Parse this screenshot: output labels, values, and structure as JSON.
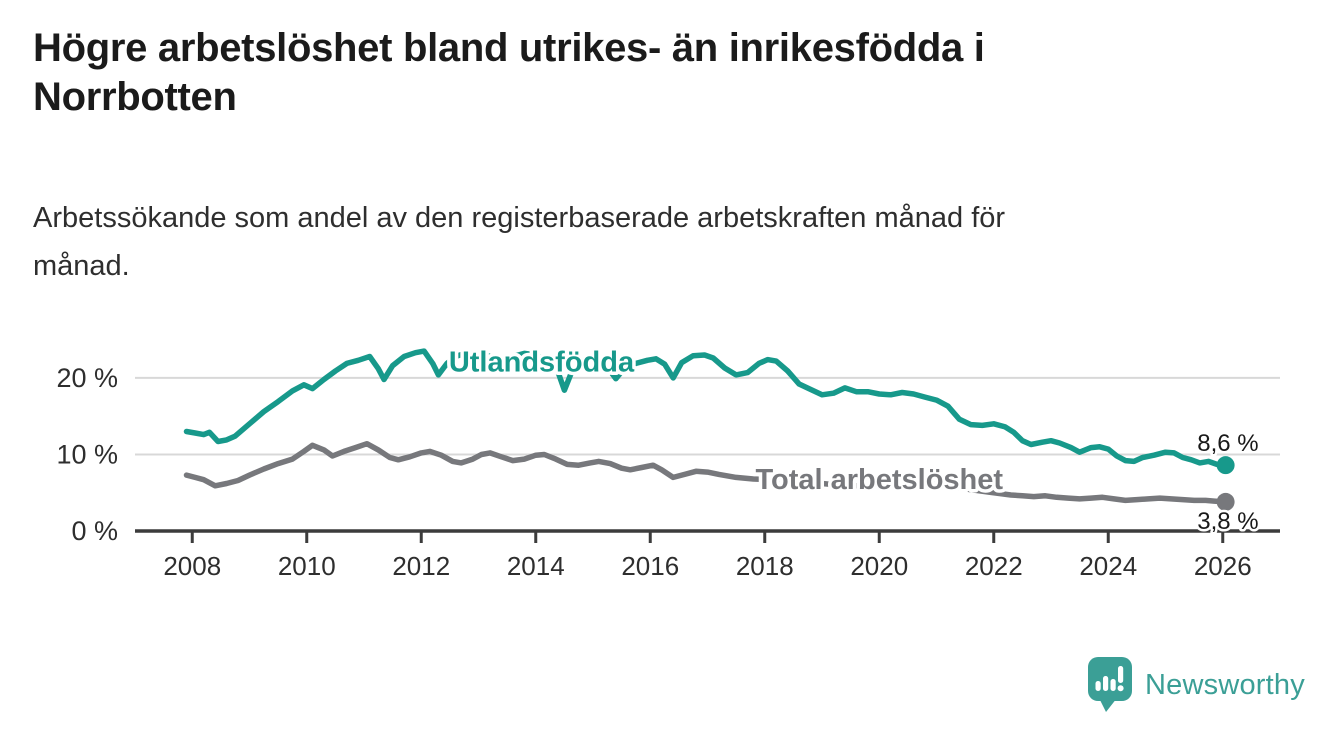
{
  "header": {
    "title_lines": [
      "Högre arbetslöshet bland utrikes- än inrikesfödda i",
      "Norrbotten"
    ],
    "subtitle_lines": [
      "Arbetssökande som andel av den registerbaserade arbetskraften månad för",
      "månad."
    ]
  },
  "footer": {
    "brand_name": "Newsworthy",
    "brand_color": "#3b9f96",
    "logo_icon": "bar-chart-speech-bubble-icon"
  },
  "chart_data": {
    "type": "line",
    "title": "Högre arbetslöshet bland utrikes- än inrikesfödda i Norrbotten",
    "subtitle": "Arbetssökande som andel av den registerbaserade arbetskraften månad för månad.",
    "unit": "%",
    "x_axis": {
      "range": [
        2007.0,
        2027.0
      ],
      "ticks": [
        2008,
        2010,
        2012,
        2014,
        2016,
        2018,
        2020,
        2022,
        2024,
        2026
      ]
    },
    "y_axis": {
      "range": [
        0,
        26
      ],
      "ticks": [
        0,
        10,
        20
      ],
      "tick_labels": [
        "0 %",
        "10 %",
        "20 %"
      ],
      "gridlines": [
        10,
        20
      ]
    },
    "grid": "horizontal",
    "legend": "inline-labels",
    "colors": {
      "axis": "#3c3c3c",
      "grid": "#d8d8d8",
      "tick_text": "#2e2e2e",
      "value_label_text": "#191919"
    },
    "series": [
      {
        "name": "Utlandsfödda",
        "color": "#17998b",
        "end_label": "8,6 %",
        "end_value": 8.6,
        "label_anchor": {
          "year": 2014.1,
          "value": 22.15
        },
        "points": [
          [
            2007.9,
            13.0
          ],
          [
            2008.05,
            12.8
          ],
          [
            2008.2,
            12.6
          ],
          [
            2008.3,
            12.9
          ],
          [
            2008.45,
            11.7
          ],
          [
            2008.6,
            11.9
          ],
          [
            2008.75,
            12.4
          ],
          [
            2009.0,
            14.0
          ],
          [
            2009.25,
            15.6
          ],
          [
            2009.5,
            16.9
          ],
          [
            2009.75,
            18.3
          ],
          [
            2009.95,
            19.1
          ],
          [
            2010.1,
            18.6
          ],
          [
            2010.3,
            19.8
          ],
          [
            2010.5,
            20.9
          ],
          [
            2010.7,
            21.9
          ],
          [
            2010.9,
            22.3
          ],
          [
            2011.1,
            22.8
          ],
          [
            2011.25,
            21.2
          ],
          [
            2011.35,
            19.8
          ],
          [
            2011.5,
            21.6
          ],
          [
            2011.7,
            22.8
          ],
          [
            2011.9,
            23.3
          ],
          [
            2012.05,
            23.5
          ],
          [
            2012.2,
            21.9
          ],
          [
            2012.3,
            20.4
          ],
          [
            2012.45,
            21.9
          ],
          [
            2012.6,
            22.8
          ],
          [
            2012.8,
            23.3
          ],
          [
            2013.0,
            23.3
          ],
          [
            2013.2,
            22.8
          ],
          [
            2013.4,
            22.4
          ],
          [
            2013.6,
            22.8
          ],
          [
            2013.8,
            23.2
          ],
          [
            2014.0,
            23.0
          ],
          [
            2014.2,
            22.4
          ],
          [
            2014.35,
            21.6
          ],
          [
            2014.5,
            18.4
          ],
          [
            2014.65,
            21.2
          ],
          [
            2014.8,
            22.0
          ],
          [
            2015.0,
            22.4
          ],
          [
            2015.2,
            21.9
          ],
          [
            2015.4,
            19.9
          ],
          [
            2015.55,
            21.3
          ],
          [
            2015.75,
            21.9
          ],
          [
            2015.95,
            22.3
          ],
          [
            2016.1,
            22.5
          ],
          [
            2016.25,
            21.8
          ],
          [
            2016.4,
            20.0
          ],
          [
            2016.55,
            22.0
          ],
          [
            2016.75,
            22.9
          ],
          [
            2016.95,
            23.0
          ],
          [
            2017.1,
            22.6
          ],
          [
            2017.3,
            21.3
          ],
          [
            2017.5,
            20.4
          ],
          [
            2017.7,
            20.7
          ],
          [
            2017.9,
            21.9
          ],
          [
            2018.05,
            22.4
          ],
          [
            2018.2,
            22.2
          ],
          [
            2018.4,
            20.9
          ],
          [
            2018.6,
            19.2
          ],
          [
            2018.8,
            18.5
          ],
          [
            2019.0,
            17.8
          ],
          [
            2019.2,
            18.0
          ],
          [
            2019.4,
            18.7
          ],
          [
            2019.6,
            18.2
          ],
          [
            2019.8,
            18.2
          ],
          [
            2020.0,
            17.9
          ],
          [
            2020.2,
            17.8
          ],
          [
            2020.4,
            18.1
          ],
          [
            2020.6,
            17.9
          ],
          [
            2020.8,
            17.5
          ],
          [
            2021.0,
            17.1
          ],
          [
            2021.2,
            16.3
          ],
          [
            2021.4,
            14.6
          ],
          [
            2021.6,
            13.9
          ],
          [
            2021.8,
            13.8
          ],
          [
            2022.0,
            14.0
          ],
          [
            2022.2,
            13.6
          ],
          [
            2022.35,
            12.9
          ],
          [
            2022.5,
            11.8
          ],
          [
            2022.65,
            11.3
          ],
          [
            2022.85,
            11.6
          ],
          [
            2023.0,
            11.8
          ],
          [
            2023.15,
            11.5
          ],
          [
            2023.35,
            10.9
          ],
          [
            2023.5,
            10.3
          ],
          [
            2023.7,
            10.9
          ],
          [
            2023.85,
            11.0
          ],
          [
            2024.0,
            10.7
          ],
          [
            2024.15,
            9.8
          ],
          [
            2024.3,
            9.2
          ],
          [
            2024.45,
            9.1
          ],
          [
            2024.6,
            9.6
          ],
          [
            2024.8,
            9.9
          ],
          [
            2025.0,
            10.3
          ],
          [
            2025.15,
            10.2
          ],
          [
            2025.3,
            9.6
          ],
          [
            2025.45,
            9.3
          ],
          [
            2025.6,
            8.9
          ],
          [
            2025.75,
            9.1
          ],
          [
            2025.9,
            8.7
          ],
          [
            2026.05,
            8.6
          ]
        ]
      },
      {
        "name": "Total arbetslöshet",
        "color": "#77787c",
        "end_label": "3,8 %",
        "end_value": 3.8,
        "label_anchor": {
          "year": 2020.0,
          "value": 6.8
        },
        "points": [
          [
            2007.9,
            7.3
          ],
          [
            2008.05,
            7.0
          ],
          [
            2008.2,
            6.7
          ],
          [
            2008.4,
            5.9
          ],
          [
            2008.6,
            6.2
          ],
          [
            2008.8,
            6.6
          ],
          [
            2009.0,
            7.3
          ],
          [
            2009.25,
            8.1
          ],
          [
            2009.5,
            8.8
          ],
          [
            2009.75,
            9.4
          ],
          [
            2009.95,
            10.4
          ],
          [
            2010.1,
            11.2
          ],
          [
            2010.3,
            10.6
          ],
          [
            2010.45,
            9.8
          ],
          [
            2010.65,
            10.4
          ],
          [
            2010.85,
            10.9
          ],
          [
            2011.05,
            11.4
          ],
          [
            2011.25,
            10.6
          ],
          [
            2011.45,
            9.6
          ],
          [
            2011.6,
            9.3
          ],
          [
            2011.8,
            9.7
          ],
          [
            2012.0,
            10.2
          ],
          [
            2012.15,
            10.4
          ],
          [
            2012.35,
            9.9
          ],
          [
            2012.55,
            9.1
          ],
          [
            2012.7,
            8.9
          ],
          [
            2012.9,
            9.4
          ],
          [
            2013.05,
            10.0
          ],
          [
            2013.2,
            10.2
          ],
          [
            2013.4,
            9.7
          ],
          [
            2013.6,
            9.2
          ],
          [
            2013.8,
            9.4
          ],
          [
            2014.0,
            9.9
          ],
          [
            2014.15,
            10.0
          ],
          [
            2014.35,
            9.4
          ],
          [
            2014.55,
            8.7
          ],
          [
            2014.75,
            8.6
          ],
          [
            2014.95,
            8.9
          ],
          [
            2015.1,
            9.1
          ],
          [
            2015.3,
            8.8
          ],
          [
            2015.5,
            8.2
          ],
          [
            2015.65,
            8.0
          ],
          [
            2015.85,
            8.3
          ],
          [
            2016.05,
            8.6
          ],
          [
            2016.2,
            8.0
          ],
          [
            2016.4,
            7.0
          ],
          [
            2016.6,
            7.4
          ],
          [
            2016.8,
            7.8
          ],
          [
            2017.0,
            7.7
          ],
          [
            2017.2,
            7.4
          ],
          [
            2017.5,
            7.0
          ],
          [
            2017.8,
            6.8
          ],
          [
            2018.1,
            6.7
          ],
          [
            2018.4,
            6.3
          ],
          [
            2018.7,
            6.1
          ],
          [
            2019.0,
            6.2
          ],
          [
            2019.3,
            6.0
          ],
          [
            2019.6,
            5.9
          ],
          [
            2019.9,
            6.0
          ],
          [
            2020.2,
            6.2
          ],
          [
            2020.45,
            6.6
          ],
          [
            2020.7,
            6.4
          ],
          [
            2021.0,
            6.1
          ],
          [
            2021.3,
            5.7
          ],
          [
            2021.6,
            5.4
          ],
          [
            2021.9,
            5.1
          ],
          [
            2022.1,
            4.9
          ],
          [
            2022.3,
            4.7
          ],
          [
            2022.5,
            4.6
          ],
          [
            2022.7,
            4.5
          ],
          [
            2022.9,
            4.6
          ],
          [
            2023.1,
            4.4
          ],
          [
            2023.3,
            4.3
          ],
          [
            2023.5,
            4.2
          ],
          [
            2023.7,
            4.3
          ],
          [
            2023.9,
            4.4
          ],
          [
            2024.1,
            4.2
          ],
          [
            2024.3,
            4.0
          ],
          [
            2024.5,
            4.1
          ],
          [
            2024.7,
            4.2
          ],
          [
            2024.9,
            4.3
          ],
          [
            2025.1,
            4.2
          ],
          [
            2025.3,
            4.1
          ],
          [
            2025.5,
            4.0
          ],
          [
            2025.7,
            4.0
          ],
          [
            2025.85,
            3.9
          ],
          [
            2026.05,
            3.8
          ]
        ]
      }
    ]
  }
}
